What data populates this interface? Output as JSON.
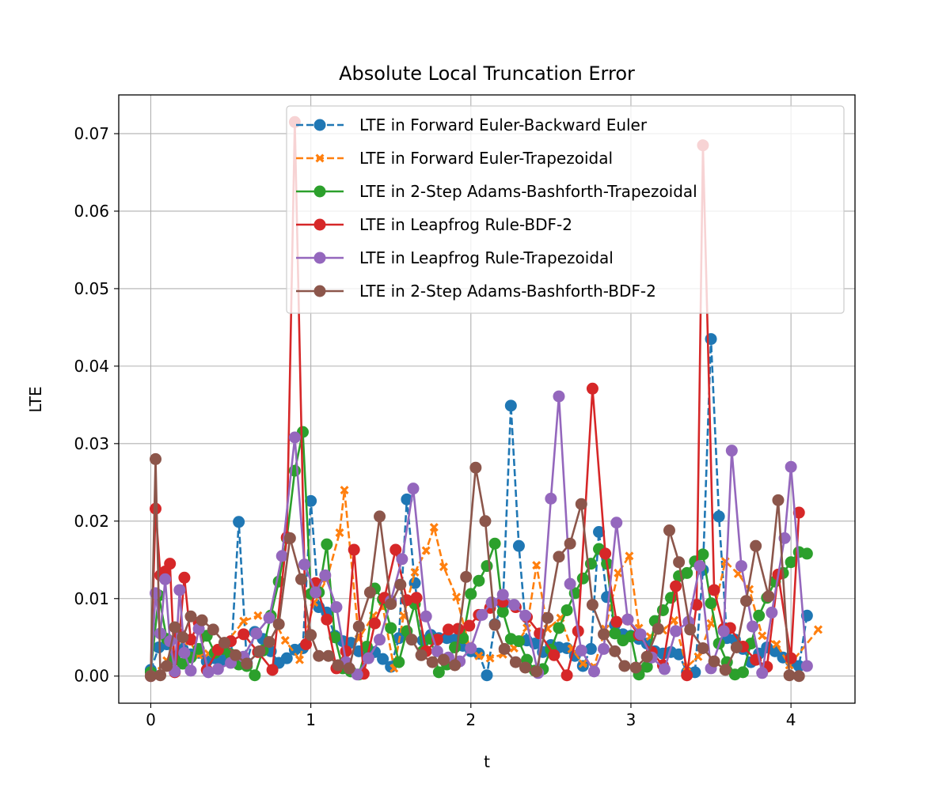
{
  "chart_data": {
    "type": "line",
    "title": "Absolute Local Truncation Error",
    "xlabel": "t",
    "ylabel": "LTE",
    "xlim": [
      -0.2,
      4.4
    ],
    "ylim": [
      -0.0035,
      0.075
    ],
    "xticks": [
      0,
      1,
      2,
      3,
      4
    ],
    "xtick_labels": [
      "0",
      "1",
      "2",
      "3",
      "4"
    ],
    "yticks": [
      0.0,
      0.01,
      0.02,
      0.03,
      0.04,
      0.05,
      0.06,
      0.07
    ],
    "ytick_labels": [
      "0.00",
      "0.01",
      "0.02",
      "0.03",
      "0.04",
      "0.05",
      "0.06",
      "0.07"
    ],
    "grid": true,
    "legend_position": "top-right",
    "series": [
      {
        "name": "LTE in Forward Euler-Backward Euler",
        "color": "#1f77b4",
        "linestyle": "dashed",
        "marker": "circle",
        "x": [
          0.0,
          0.05,
          0.1,
          0.15,
          0.2,
          0.25,
          0.3,
          0.35,
          0.4,
          0.45,
          0.5,
          0.55,
          0.6,
          0.65,
          0.7,
          0.75,
          0.8,
          0.85,
          0.9,
          0.95,
          1.0,
          1.05,
          1.1,
          1.15,
          1.2,
          1.25,
          1.3,
          1.35,
          1.4,
          1.45,
          1.5,
          1.55,
          1.6,
          1.65,
          1.7,
          1.75,
          1.8,
          1.85,
          1.9,
          1.95,
          2.0,
          2.05,
          2.1,
          2.15,
          2.2,
          2.25,
          2.3,
          2.35,
          2.4,
          2.45,
          2.5,
          2.55,
          2.6,
          2.65,
          2.7,
          2.75,
          2.8,
          2.85,
          2.9,
          2.95,
          3.0,
          3.05,
          3.1,
          3.15,
          3.2,
          3.25,
          3.3,
          3.35,
          3.4,
          3.45,
          3.5,
          3.55,
          3.6,
          3.65,
          3.7,
          3.75,
          3.8,
          3.85,
          3.9,
          3.95,
          4.0,
          4.05,
          4.1
        ],
        "y": [
          0.0008,
          0.0037,
          0.0041,
          0.0025,
          0.0035,
          0.0028,
          0.003,
          0.0019,
          0.0023,
          0.0021,
          0.0019,
          0.0199,
          0.0017,
          0.0057,
          0.0048,
          0.0032,
          0.0017,
          0.0023,
          0.0034,
          0.0036,
          0.0226,
          0.0089,
          0.0082,
          0.0052,
          0.0045,
          0.0043,
          0.0032,
          0.0037,
          0.0031,
          0.0022,
          0.0012,
          0.0049,
          0.0228,
          0.012,
          0.0046,
          0.0053,
          0.0049,
          0.0049,
          0.0047,
          0.0039,
          0.0032,
          0.0029,
          0.0001,
          0.0067,
          0.0092,
          0.0349,
          0.0168,
          0.0046,
          0.0042,
          0.0031,
          0.004,
          0.0037,
          0.0036,
          0.0026,
          0.0013,
          0.0035,
          0.0186,
          0.0102,
          0.0066,
          0.0054,
          0.0052,
          0.0048,
          0.0042,
          0.0032,
          0.0029,
          0.0031,
          0.0028,
          0.0005,
          0.0005,
          0.0137,
          0.0435,
          0.0206,
          0.0049,
          0.0047,
          0.0035,
          0.0018,
          0.0029,
          0.0037,
          0.0032,
          0.0024,
          0.0019,
          0.0013,
          0.0078
        ]
      },
      {
        "name": "LTE in Forward Euler-Trapezoidal",
        "color": "#ff7f0e",
        "linestyle": "dashed",
        "marker": "x",
        "x": [
          0.0,
          0.1,
          0.16,
          0.24,
          0.3,
          0.36,
          0.42,
          0.48,
          0.58,
          0.67,
          0.75,
          0.84,
          0.93,
          1.02,
          1.1,
          1.18,
          1.21,
          1.3,
          1.39,
          1.45,
          1.52,
          1.58,
          1.65,
          1.72,
          1.77,
          1.83,
          1.91,
          1.99,
          2.05,
          2.12,
          2.2,
          2.27,
          2.35,
          2.41,
          2.48,
          2.56,
          2.63,
          2.7,
          2.77,
          2.84,
          2.92,
          2.99,
          3.05,
          3.12,
          3.2,
          3.27,
          3.35,
          3.42,
          3.5,
          3.59,
          3.67,
          3.74,
          3.82,
          3.91,
          3.99,
          4.17
        ],
        "y": [
          0.0,
          0.002,
          0.0045,
          0.0045,
          0.0027,
          0.0029,
          0.0032,
          0.0045,
          0.0071,
          0.0078,
          0.0078,
          0.0046,
          0.0021,
          0.0095,
          0.0125,
          0.0185,
          0.024,
          0.0048,
          0.0078,
          0.0089,
          0.001,
          0.0078,
          0.0134,
          0.0162,
          0.0192,
          0.0141,
          0.0102,
          0.0039,
          0.0026,
          0.0023,
          0.0028,
          0.0036,
          0.0062,
          0.0143,
          0.0061,
          0.0075,
          0.0035,
          0.0016,
          0.0012,
          0.0061,
          0.0133,
          0.0155,
          0.0062,
          0.0051,
          0.0059,
          0.0072,
          0.0012,
          0.0025,
          0.0068,
          0.0148,
          0.0132,
          0.0112,
          0.0052,
          0.0041,
          0.0014,
          0.006
        ]
      },
      {
        "name": "LTE in 2-Step Adams-Bashforth-Trapezoidal",
        "color": "#2ca02c",
        "linestyle": "solid",
        "marker": "circle",
        "x": [
          0.0,
          0.05,
          0.1,
          0.15,
          0.2,
          0.25,
          0.3,
          0.35,
          0.4,
          0.45,
          0.5,
          0.55,
          0.6,
          0.65,
          0.7,
          0.75,
          0.8,
          0.85,
          0.9,
          0.95,
          1.0,
          1.05,
          1.1,
          1.15,
          1.2,
          1.25,
          1.3,
          1.35,
          1.4,
          1.45,
          1.5,
          1.55,
          1.6,
          1.65,
          1.7,
          1.75,
          1.8,
          1.85,
          1.9,
          1.95,
          2.0,
          2.05,
          2.1,
          2.15,
          2.2,
          2.25,
          2.3,
          2.35,
          2.4,
          2.45,
          2.5,
          2.55,
          2.6,
          2.65,
          2.7,
          2.75,
          2.8,
          2.85,
          2.9,
          2.95,
          3.0,
          3.05,
          3.1,
          3.15,
          3.2,
          3.25,
          3.3,
          3.35,
          3.4,
          3.45,
          3.5,
          3.55,
          3.6,
          3.65,
          3.7,
          3.75,
          3.8,
          3.85,
          3.9,
          3.95,
          4.0,
          4.05,
          4.1
        ],
        "y": [
          0.0005,
          0.0104,
          0.0048,
          0.0021,
          0.0016,
          0.0024,
          0.0035,
          0.0052,
          0.003,
          0.0035,
          0.0028,
          0.0015,
          0.0013,
          0.0001,
          0.0033,
          0.0078,
          0.0122,
          0.0178,
          0.0265,
          0.0315,
          0.0106,
          0.0108,
          0.017,
          0.005,
          0.001,
          0.0006,
          0.0002,
          0.0038,
          0.0113,
          0.0099,
          0.0062,
          0.0018,
          0.0058,
          0.0093,
          0.0032,
          0.0048,
          0.0005,
          0.0015,
          0.0037,
          0.0049,
          0.0106,
          0.0123,
          0.0142,
          0.0171,
          0.0083,
          0.0048,
          0.0045,
          0.0021,
          0.0007,
          0.0009,
          0.0034,
          0.0062,
          0.0085,
          0.0107,
          0.0126,
          0.0145,
          0.0164,
          0.0145,
          0.0055,
          0.0046,
          0.0051,
          0.0002,
          0.0012,
          0.0071,
          0.0085,
          0.0101,
          0.0129,
          0.0133,
          0.0148,
          0.0157,
          0.0094,
          0.0042,
          0.0018,
          0.0002,
          0.0005,
          0.0042,
          0.0078,
          0.0101,
          0.0122,
          0.0133,
          0.0147,
          0.016,
          0.0158
        ]
      },
      {
        "name": "LTE in Leapfrog Rule-BDF-2",
        "color": "#d62728",
        "linestyle": "solid",
        "marker": "circle",
        "x": [
          0.0,
          0.03,
          0.06,
          0.09,
          0.12,
          0.15,
          0.18,
          0.21,
          0.25,
          0.3,
          0.35,
          0.42,
          0.5,
          0.58,
          0.67,
          0.76,
          0.85,
          0.9,
          0.97,
          1.03,
          1.1,
          1.16,
          1.22,
          1.27,
          1.33,
          1.4,
          1.46,
          1.53,
          1.6,
          1.66,
          1.72,
          1.79,
          1.86,
          1.92,
          1.99,
          2.05,
          2.12,
          2.2,
          2.28,
          2.35,
          2.43,
          2.52,
          2.6,
          2.67,
          2.76,
          2.84,
          2.91,
          2.98,
          3.05,
          3.13,
          3.2,
          3.28,
          3.35,
          3.41,
          3.45,
          3.52,
          3.58,
          3.62,
          3.7,
          3.78,
          3.85,
          3.92,
          4.0,
          4.05
        ],
        "y": [
          0.0,
          0.0216,
          0.013,
          0.0135,
          0.0145,
          0.0005,
          0.0054,
          0.0127,
          0.0047,
          0.0069,
          0.0008,
          0.0034,
          0.0045,
          0.0054,
          0.0031,
          0.0008,
          0.0179,
          0.0715,
          0.0041,
          0.012,
          0.0073,
          0.001,
          0.0032,
          0.0163,
          0.0003,
          0.0068,
          0.0101,
          0.0163,
          0.0098,
          0.0101,
          0.0032,
          0.0047,
          0.006,
          0.0061,
          0.0065,
          0.0079,
          0.0088,
          0.0096,
          0.0089,
          0.0076,
          0.0055,
          0.0027,
          0.0001,
          0.0058,
          0.0371,
          0.0158,
          0.007,
          0.0073,
          0.0053,
          0.0031,
          0.0014,
          0.0116,
          0.0001,
          0.0092,
          0.0685,
          0.0111,
          0.0061,
          0.0062,
          0.0038,
          0.0021,
          0.0012,
          0.0131,
          0.0023,
          0.0211
        ]
      },
      {
        "name": "LTE in Leapfrog Rule-Trapezoidal",
        "color": "#9467bd",
        "linestyle": "solid",
        "marker": "circle",
        "x": [
          0.0,
          0.03,
          0.06,
          0.09,
          0.12,
          0.15,
          0.18,
          0.21,
          0.25,
          0.3,
          0.36,
          0.42,
          0.5,
          0.58,
          0.66,
          0.74,
          0.82,
          0.9,
          0.96,
          1.03,
          1.09,
          1.16,
          1.22,
          1.29,
          1.36,
          1.43,
          1.5,
          1.57,
          1.64,
          1.72,
          1.79,
          1.86,
          1.93,
          2.0,
          2.07,
          2.13,
          2.2,
          2.27,
          2.34,
          2.42,
          2.5,
          2.55,
          2.62,
          2.69,
          2.77,
          2.83,
          2.91,
          2.98,
          3.06,
          3.13,
          3.21,
          3.28,
          3.36,
          3.43,
          3.5,
          3.58,
          3.63,
          3.69,
          3.76,
          3.82,
          3.88,
          3.96,
          4.0,
          4.1
        ],
        "y": [
          0.0,
          0.0107,
          0.0055,
          0.0125,
          0.0045,
          0.0006,
          0.0111,
          0.003,
          0.0007,
          0.0061,
          0.0005,
          0.0009,
          0.0017,
          0.0025,
          0.0055,
          0.0075,
          0.0155,
          0.0308,
          0.0144,
          0.0108,
          0.013,
          0.0089,
          0.0018,
          0.0002,
          0.0023,
          0.0047,
          0.0097,
          0.0151,
          0.0242,
          0.0077,
          0.0032,
          0.0024,
          0.0019,
          0.0036,
          0.0079,
          0.0095,
          0.0105,
          0.0092,
          0.0078,
          0.0004,
          0.0229,
          0.0361,
          0.0119,
          0.0033,
          0.0006,
          0.0035,
          0.0198,
          0.0073,
          0.0054,
          0.0024,
          0.0009,
          0.0058,
          0.007,
          0.0142,
          0.001,
          0.0058,
          0.0291,
          0.0142,
          0.0064,
          0.0004,
          0.0082,
          0.0178,
          0.027,
          0.0013
        ]
      },
      {
        "name": "LTE in 2-Step Adams-Bashforth-BDF-2",
        "color": "#8c564b",
        "linestyle": "solid",
        "marker": "circle",
        "x": [
          0.0,
          0.03,
          0.06,
          0.1,
          0.15,
          0.2,
          0.25,
          0.32,
          0.39,
          0.46,
          0.53,
          0.6,
          0.68,
          0.74,
          0.8,
          0.87,
          0.94,
          1.0,
          1.05,
          1.11,
          1.17,
          1.24,
          1.3,
          1.37,
          1.43,
          1.5,
          1.56,
          1.63,
          1.69,
          1.76,
          1.83,
          1.9,
          1.97,
          2.03,
          2.09,
          2.15,
          2.21,
          2.28,
          2.34,
          2.41,
          2.48,
          2.55,
          2.62,
          2.69,
          2.76,
          2.83,
          2.9,
          2.96,
          3.03,
          3.1,
          3.17,
          3.24,
          3.3,
          3.37,
          3.45,
          3.52,
          3.59,
          3.66,
          3.72,
          3.78,
          3.86,
          3.92,
          3.99,
          4.05
        ],
        "y": [
          0.0,
          0.028,
          0.0001,
          0.0013,
          0.0063,
          0.005,
          0.0077,
          0.0072,
          0.006,
          0.0043,
          0.0027,
          0.0016,
          0.0032,
          0.0044,
          0.0067,
          0.0178,
          0.0125,
          0.0053,
          0.0026,
          0.0026,
          0.0014,
          0.001,
          0.0064,
          0.0108,
          0.0206,
          0.0093,
          0.0118,
          0.0047,
          0.0027,
          0.0018,
          0.0021,
          0.0014,
          0.0128,
          0.0269,
          0.02,
          0.0066,
          0.0035,
          0.0018,
          0.0011,
          0.0006,
          0.0075,
          0.0154,
          0.0171,
          0.0222,
          0.0092,
          0.0054,
          0.0032,
          0.0013,
          0.0011,
          0.0025,
          0.0061,
          0.0188,
          0.0147,
          0.006,
          0.0036,
          0.0019,
          0.0008,
          0.0037,
          0.0097,
          0.0168,
          0.0103,
          0.0227,
          0.0001,
          0.0
        ]
      }
    ]
  }
}
